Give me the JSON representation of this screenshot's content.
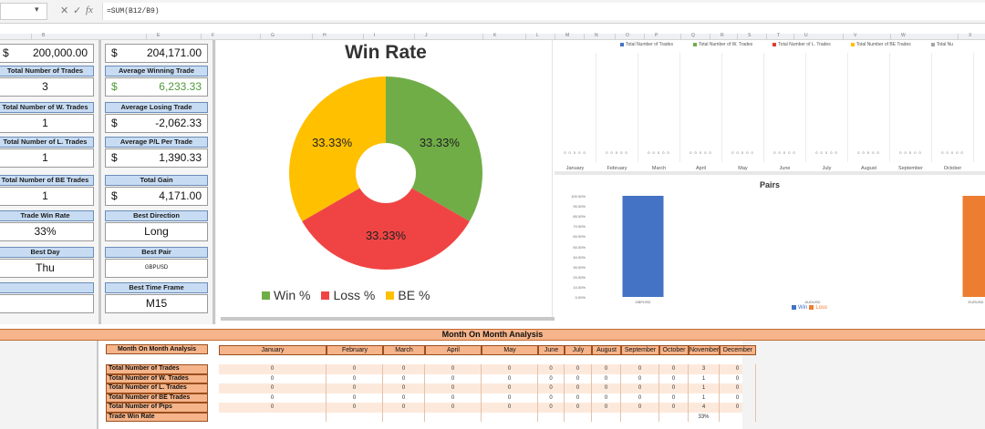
{
  "formula_bar": {
    "fx": "fx",
    "formula": "=SUM(B12/B9)"
  },
  "col_headers": [
    "B",
    "E",
    "F",
    "G",
    "H",
    "I",
    "J",
    "K",
    "L",
    "M",
    "N",
    "O",
    "P",
    "Q",
    "R",
    "S",
    "T",
    "U",
    "V",
    "W",
    "X"
  ],
  "left_stats": {
    "col1": [
      {
        "label": "",
        "currency": "$",
        "value": "200,000.00"
      },
      {
        "label": "Total Number of Trades",
        "value": "3"
      },
      {
        "label": "Total Number of W. Trades",
        "value": "1"
      },
      {
        "label": "Total Number of L. Trades",
        "value": "1"
      },
      {
        "label": "Total Number of BE Trades",
        "value": "1"
      },
      {
        "label": "Trade Win Rate",
        "value": "33%"
      },
      {
        "label": "Best Day",
        "value": "Thu"
      },
      {
        "label": "",
        "value": ""
      }
    ],
    "col2": [
      {
        "label": "",
        "currency": "$",
        "value": "204,171.00"
      },
      {
        "label": "Average Winning Trade",
        "currency": "$",
        "value": "6,233.33"
      },
      {
        "label": "Average Losing Trade",
        "currency": "$",
        "value": "-2,062.33"
      },
      {
        "label": "Average P/L Per Trade",
        "currency": "$",
        "value": "1,390.33"
      },
      {
        "label": "Total Gain",
        "currency": "$",
        "value": "4,171.00"
      },
      {
        "label": "Best Direction",
        "value": "Long"
      },
      {
        "label": "Best Pair",
        "value": "GBPUSD"
      },
      {
        "label": "Best Time Frame",
        "value": "M15"
      }
    ]
  },
  "pie_chart": {
    "title": "Win Rate",
    "slices": [
      {
        "name": "Win %",
        "value": 33.33,
        "label": "33.33%",
        "color": "#70ad47"
      },
      {
        "name": "Loss %",
        "value": 33.33,
        "label": "33.33%",
        "color": "#f04444"
      },
      {
        "name": "BE %",
        "value": 33.33,
        "label": "33.33%",
        "color": "#ffc000"
      }
    ]
  },
  "monthly_chart": {
    "legend": [
      {
        "name": "Total Number of Trades",
        "color": "#4472c4"
      },
      {
        "name": "Total Number of W. Trades",
        "color": "#70ad47"
      },
      {
        "name": "Total Number of L. Trades",
        "color": "#e03c31"
      },
      {
        "name": "Total Number of BE Trades",
        "color": "#ffc000"
      },
      {
        "name": "Total Nu",
        "color": "#a5a5a5"
      }
    ],
    "months": [
      "January",
      "February",
      "March",
      "April",
      "May",
      "June",
      "July",
      "August",
      "September",
      "October"
    ],
    "point_labels": "0 0 0 0 0"
  },
  "chart_data": {
    "type": "bar",
    "title": "Pairs",
    "categories": [
      "GBPUSD",
      "AUDUSD",
      "EURUSD"
    ],
    "series": [
      {
        "name": "Win",
        "color": "#4472c4",
        "values": [
          100,
          0,
          0
        ]
      },
      {
        "name": "Loss",
        "color": "#ed7d31",
        "values": [
          0,
          0,
          100
        ]
      }
    ],
    "yticks": [
      "100.00%",
      "90.00%",
      "80.00%",
      "70.00%",
      "60.00%",
      "50.00%",
      "40.00%",
      "30.00%",
      "20.00%",
      "10.00%",
      "0.00%"
    ],
    "ylim": [
      0,
      100
    ],
    "legend_position": "bottom",
    "grid": false
  },
  "mom": {
    "title": "Month On Month Analysis",
    "corner_label": "Month On Month Analysis",
    "months": [
      "January",
      "February",
      "March",
      "April",
      "May",
      "June",
      "July",
      "August",
      "September",
      "October",
      "November",
      "December"
    ],
    "rows": [
      {
        "label": "Total Number of Trades",
        "values": [
          "0",
          "0",
          "0",
          "0",
          "0",
          "0",
          "0",
          "0",
          "0",
          "0",
          "3",
          "0"
        ]
      },
      {
        "label": "Total Number of W. Trades",
        "values": [
          "0",
          "0",
          "0",
          "0",
          "0",
          "0",
          "0",
          "0",
          "0",
          "0",
          "1",
          "0"
        ]
      },
      {
        "label": "Total Number of L. Trades",
        "values": [
          "0",
          "0",
          "0",
          "0",
          "0",
          "0",
          "0",
          "0",
          "0",
          "0",
          "1",
          "0"
        ]
      },
      {
        "label": "Total Number of BE Trades",
        "values": [
          "0",
          "0",
          "0",
          "0",
          "0",
          "0",
          "0",
          "0",
          "0",
          "0",
          "1",
          "0"
        ]
      },
      {
        "label": "Total Number of Pips",
        "values": [
          "0",
          "0",
          "0",
          "0",
          "0",
          "0",
          "0",
          "0",
          "0",
          "0",
          "4",
          "0"
        ]
      },
      {
        "label": "Trade Win Rate",
        "values": [
          "",
          "",
          "",
          "",
          "",
          "",
          "",
          "",
          "",
          "",
          "33%",
          ""
        ]
      }
    ]
  }
}
